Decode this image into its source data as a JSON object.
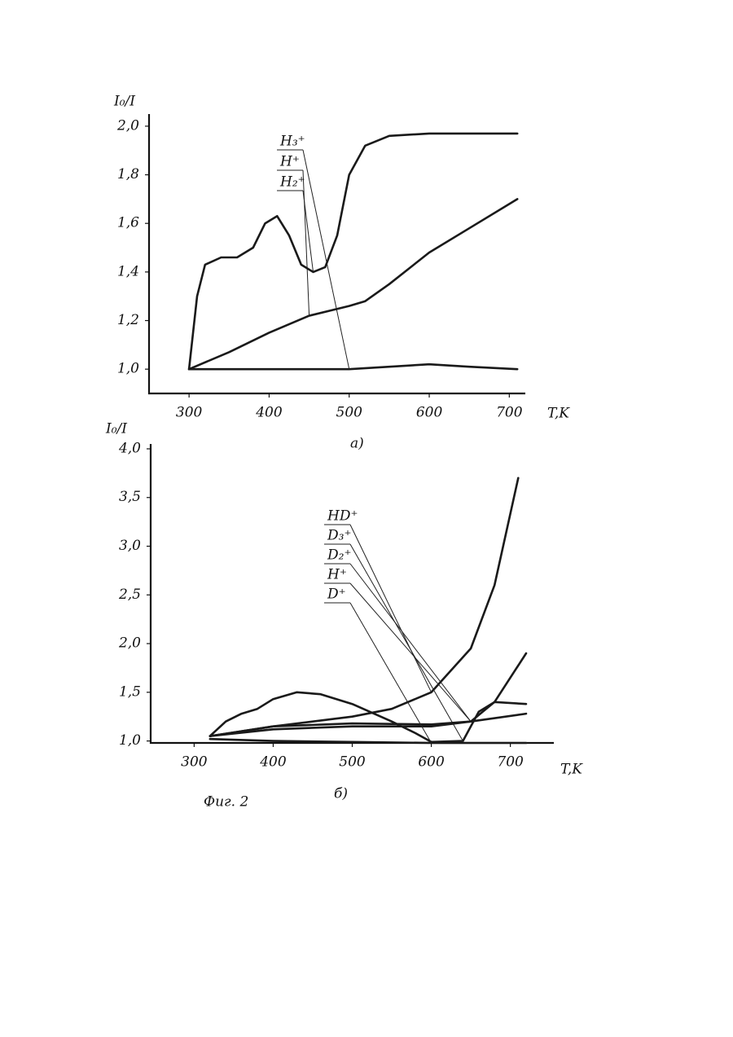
{
  "chart_data": [
    {
      "type": "line",
      "caption": "а)",
      "y_label": "I₀/I",
      "x_label": "T,K",
      "xlim": [
        250,
        720
      ],
      "ylim": [
        0.9,
        2.05
      ],
      "xticks": [
        300,
        400,
        500,
        600,
        700
      ],
      "yticks": [
        {
          "value": 1.0,
          "label": "1,0"
        },
        {
          "value": 1.2,
          "label": "1,2"
        },
        {
          "value": 1.4,
          "label": "1,4"
        },
        {
          "value": 1.6,
          "label": "1,6"
        },
        {
          "value": 1.8,
          "label": "1,8"
        },
        {
          "value": 2.0,
          "label": "2,0"
        }
      ],
      "series": [
        {
          "name": "H₃⁺",
          "color": "#1a1a1a",
          "x": [
            300,
            400,
            500,
            600,
            650,
            710
          ],
          "values": [
            1.0,
            1.0,
            1.0,
            1.02,
            1.01,
            1.0
          ]
        },
        {
          "name": "H⁺",
          "color": "#1a1a1a",
          "x": [
            300,
            350,
            400,
            450,
            500,
            520,
            550,
            600,
            650,
            710
          ],
          "values": [
            1.0,
            1.07,
            1.15,
            1.22,
            1.26,
            1.28,
            1.35,
            1.48,
            1.58,
            1.7
          ]
        },
        {
          "name": "H₂⁺",
          "color": "#1a1a1a",
          "x": [
            300,
            310,
            320,
            340,
            360,
            380,
            395,
            410,
            425,
            440,
            455,
            470,
            485,
            500,
            520,
            550,
            600,
            710
          ],
          "values": [
            1.0,
            1.3,
            1.43,
            1.46,
            1.46,
            1.5,
            1.6,
            1.63,
            1.55,
            1.43,
            1.4,
            1.42,
            1.55,
            1.8,
            1.92,
            1.96,
            1.97,
            1.97
          ]
        }
      ]
    },
    {
      "type": "line",
      "caption": "б)",
      "y_label": "I₀/I",
      "x_label": "T,K",
      "xlim": [
        245,
        755
      ],
      "ylim": [
        0.98,
        4.05
      ],
      "xticks": [
        300,
        400,
        500,
        600,
        700
      ],
      "yticks": [
        {
          "value": 1.0,
          "label": "1,0"
        },
        {
          "value": 1.5,
          "label": "1,5"
        },
        {
          "value": 2.0,
          "label": "2,0"
        },
        {
          "value": 2.5,
          "label": "2,5"
        },
        {
          "value": 3.0,
          "label": "3,0"
        },
        {
          "value": 3.5,
          "label": "3,5"
        },
        {
          "value": 4.0,
          "label": "4,0"
        }
      ],
      "series": [
        {
          "name": "HD⁺",
          "color": "#1a1a1a",
          "x": [
            320,
            400,
            500,
            550,
            600,
            650,
            680,
            710
          ],
          "values": [
            1.05,
            1.15,
            1.25,
            1.33,
            1.5,
            1.95,
            2.6,
            3.7
          ]
        },
        {
          "name": "D₃⁺",
          "color": "#1a1a1a",
          "x": [
            320,
            340,
            360,
            380,
            400,
            430,
            460,
            500,
            550,
            580,
            600,
            640,
            660,
            680,
            720
          ],
          "values": [
            1.05,
            1.2,
            1.28,
            1.33,
            1.43,
            1.5,
            1.48,
            1.38,
            1.2,
            1.08,
            0.99,
            1.0,
            1.3,
            1.4,
            1.38
          ]
        },
        {
          "name": "D₂⁺",
          "color": "#1a1a1a",
          "x": [
            320,
            400,
            500,
            600,
            650,
            680,
            720
          ],
          "values": [
            1.05,
            1.15,
            1.18,
            1.17,
            1.2,
            1.4,
            1.9
          ]
        },
        {
          "name": "H⁺",
          "color": "#1a1a1a",
          "x": [
            320,
            400,
            500,
            600,
            650,
            720
          ],
          "values": [
            1.05,
            1.12,
            1.15,
            1.15,
            1.2,
            1.28
          ]
        },
        {
          "name": "D⁺",
          "color": "#1a1a1a",
          "x": [
            320,
            400,
            500,
            600,
            720
          ],
          "values": [
            1.02,
            1.0,
            0.99,
            0.98,
            0.98
          ]
        }
      ]
    }
  ],
  "figure_caption": "Фиг. 2"
}
